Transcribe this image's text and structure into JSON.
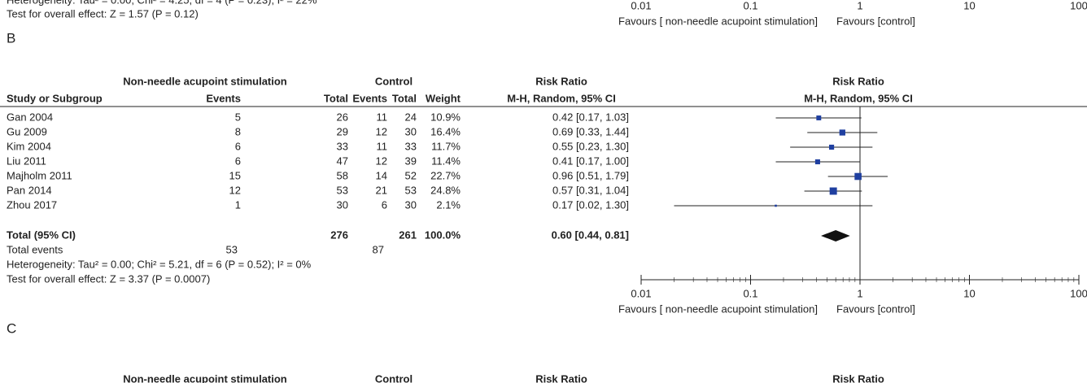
{
  "panel_a_tail": {
    "heterogeneity": "Heterogeneity: Tau² = 0.00; Chi² = 4.25, df = 4 (P = 0.23); I² = 22%",
    "overall_effect": "Test for overall effect: Z = 1.57 (P = 0.12)",
    "axis_ticks": [
      0.01,
      0.1,
      1,
      10,
      100
    ],
    "favours_left": "Favours [ non-needle acupoint stimulation]",
    "favours_right": "Favours [control]"
  },
  "panel_b": {
    "label": "B",
    "group_headers": {
      "experimental": "Non-needle acupoint stimulation",
      "control": "Control",
      "effect": "Risk Ratio",
      "plot": "Risk Ratio"
    },
    "column_headers": {
      "study": "Study or Subgroup",
      "exp_events": "Events",
      "exp_total": "Total",
      "ctl_events": "Events",
      "ctl_total": "Total",
      "weight": "Weight",
      "effect": "M-H, Random, 95% CI",
      "plot": "M-H, Random, 95% CI"
    },
    "rows": [
      {
        "study": "Gan 2004",
        "exp_events": 5,
        "exp_total": 26,
        "ctl_events": 11,
        "ctl_total": 24,
        "weight": {
          "value": 10.9,
          "label": "10.9%"
        },
        "ci": {
          "rr": 0.42,
          "lo": 0.17,
          "hi": 1.03,
          "label": "0.42 [0.17, 1.03]"
        }
      },
      {
        "study": "Gu 2009",
        "exp_events": 8,
        "exp_total": 29,
        "ctl_events": 12,
        "ctl_total": 30,
        "weight": {
          "value": 16.4,
          "label": "16.4%"
        },
        "ci": {
          "rr": 0.69,
          "lo": 0.33,
          "hi": 1.44,
          "label": "0.69 [0.33, 1.44]"
        }
      },
      {
        "study": "Kim 2004",
        "exp_events": 6,
        "exp_total": 33,
        "ctl_events": 11,
        "ctl_total": 33,
        "weight": {
          "value": 11.7,
          "label": "11.7%"
        },
        "ci": {
          "rr": 0.55,
          "lo": 0.23,
          "hi": 1.3,
          "label": "0.55 [0.23, 1.30]"
        }
      },
      {
        "study": "Liu 2011",
        "exp_events": 6,
        "exp_total": 47,
        "ctl_events": 12,
        "ctl_total": 39,
        "weight": {
          "value": 11.4,
          "label": "11.4%"
        },
        "ci": {
          "rr": 0.41,
          "lo": 0.17,
          "hi": 1.0,
          "label": "0.41 [0.17, 1.00]"
        }
      },
      {
        "study": "Majholm 2011",
        "exp_events": 15,
        "exp_total": 58,
        "ctl_events": 14,
        "ctl_total": 52,
        "weight": {
          "value": 22.7,
          "label": "22.7%"
        },
        "ci": {
          "rr": 0.96,
          "lo": 0.51,
          "hi": 1.79,
          "label": "0.96 [0.51, 1.79]"
        }
      },
      {
        "study": "Pan 2014",
        "exp_events": 12,
        "exp_total": 53,
        "ctl_events": 21,
        "ctl_total": 53,
        "weight": {
          "value": 24.8,
          "label": "24.8%"
        },
        "ci": {
          "rr": 0.57,
          "lo": 0.31,
          "hi": 1.04,
          "label": "0.57 [0.31, 1.04]"
        }
      },
      {
        "study": "Zhou 2017",
        "exp_events": 1,
        "exp_total": 30,
        "ctl_events": 6,
        "ctl_total": 30,
        "weight": {
          "value": 2.1,
          "label": "2.1%"
        },
        "ci": {
          "rr": 0.17,
          "lo": 0.02,
          "hi": 1.3,
          "label": "0.17 [0.02, 1.30]"
        }
      }
    ],
    "total": {
      "label": "Total (95% CI)",
      "exp_total": 276,
      "ctl_total": 261,
      "weight": {
        "value": 100.0,
        "label": "100.0%"
      },
      "ci": {
        "rr": 0.6,
        "lo": 0.44,
        "hi": 0.81,
        "label": "0.60 [0.44, 0.81]"
      }
    },
    "total_events": {
      "label": "Total events",
      "exp_events": 53,
      "ctl_events": 87
    },
    "heterogeneity": "Heterogeneity: Tau² = 0.00; Chi² = 5.21, df = 6 (P = 0.52); I² = 0%",
    "overall_effect": "Test for overall effect: Z = 3.37 (P = 0.0007)",
    "axis_ticks": [
      0.01,
      0.1,
      1,
      10,
      100
    ],
    "xlim": [
      0.01,
      100
    ],
    "favours_left": "Favours [ non-needle acupoint stimulation]",
    "favours_right": "Favours [control]"
  },
  "panel_c": {
    "label": "C",
    "group_headers": {
      "experimental": "Non-needle acupoint stimulation",
      "control": "Control",
      "effect": "Risk Ratio",
      "plot": "Risk Ratio"
    }
  }
}
